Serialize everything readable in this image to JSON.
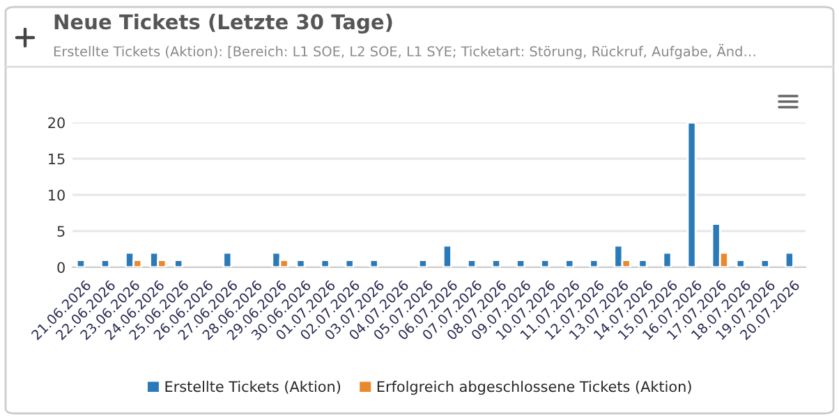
{
  "chart_data": {
    "type": "bar",
    "title": "Neue Tickets (Letzte 30 Tage)",
    "subtitle": "Erstellte Tickets (Aktion): [Bereich: L1 SOE, L2 SOE, L1 SYE; Ticketart: Störung, Rückruf, Aufgabe, Änd…",
    "categories": [
      "21.06.2026",
      "22.06.2026",
      "23.06.2026",
      "24.06.2026",
      "25.06.2026",
      "26.06.2026",
      "27.06.2026",
      "28.06.2026",
      "29.06.2026",
      "30.06.2026",
      "01.07.2026",
      "02.07.2026",
      "03.07.2026",
      "04.07.2026",
      "05.07.2026",
      "06.07.2026",
      "07.07.2026",
      "08.07.2026",
      "09.07.2026",
      "10.07.2026",
      "11.07.2026",
      "12.07.2026",
      "13.07.2026",
      "14.07.2026",
      "15.07.2026",
      "16.07.2026",
      "17.07.2026",
      "18.07.2026",
      "19.07.2026",
      "20.07.2026"
    ],
    "series": [
      {
        "name": "Erstellte Tickets (Aktion)",
        "color": "#2a7ab9",
        "values": [
          1,
          1,
          2,
          2,
          1,
          null,
          2,
          null,
          2,
          1,
          1,
          1,
          1,
          null,
          1,
          3,
          1,
          1,
          1,
          1,
          1,
          1,
          3,
          1,
          2,
          20,
          6,
          1,
          1,
          2
        ]
      },
      {
        "name": "Erfolgreich abgeschlossene Tickets (Aktion)",
        "color": "#e8892c",
        "values": [
          null,
          null,
          1,
          1,
          null,
          null,
          null,
          null,
          1,
          null,
          null,
          null,
          null,
          null,
          null,
          null,
          null,
          null,
          null,
          null,
          null,
          null,
          1,
          null,
          null,
          null,
          2,
          null,
          null,
          null
        ]
      }
    ],
    "ylim": [
      0,
      20
    ],
    "yticks": [
      0,
      5,
      10,
      15,
      20
    ],
    "grid": "y",
    "legend": "bottom"
  }
}
